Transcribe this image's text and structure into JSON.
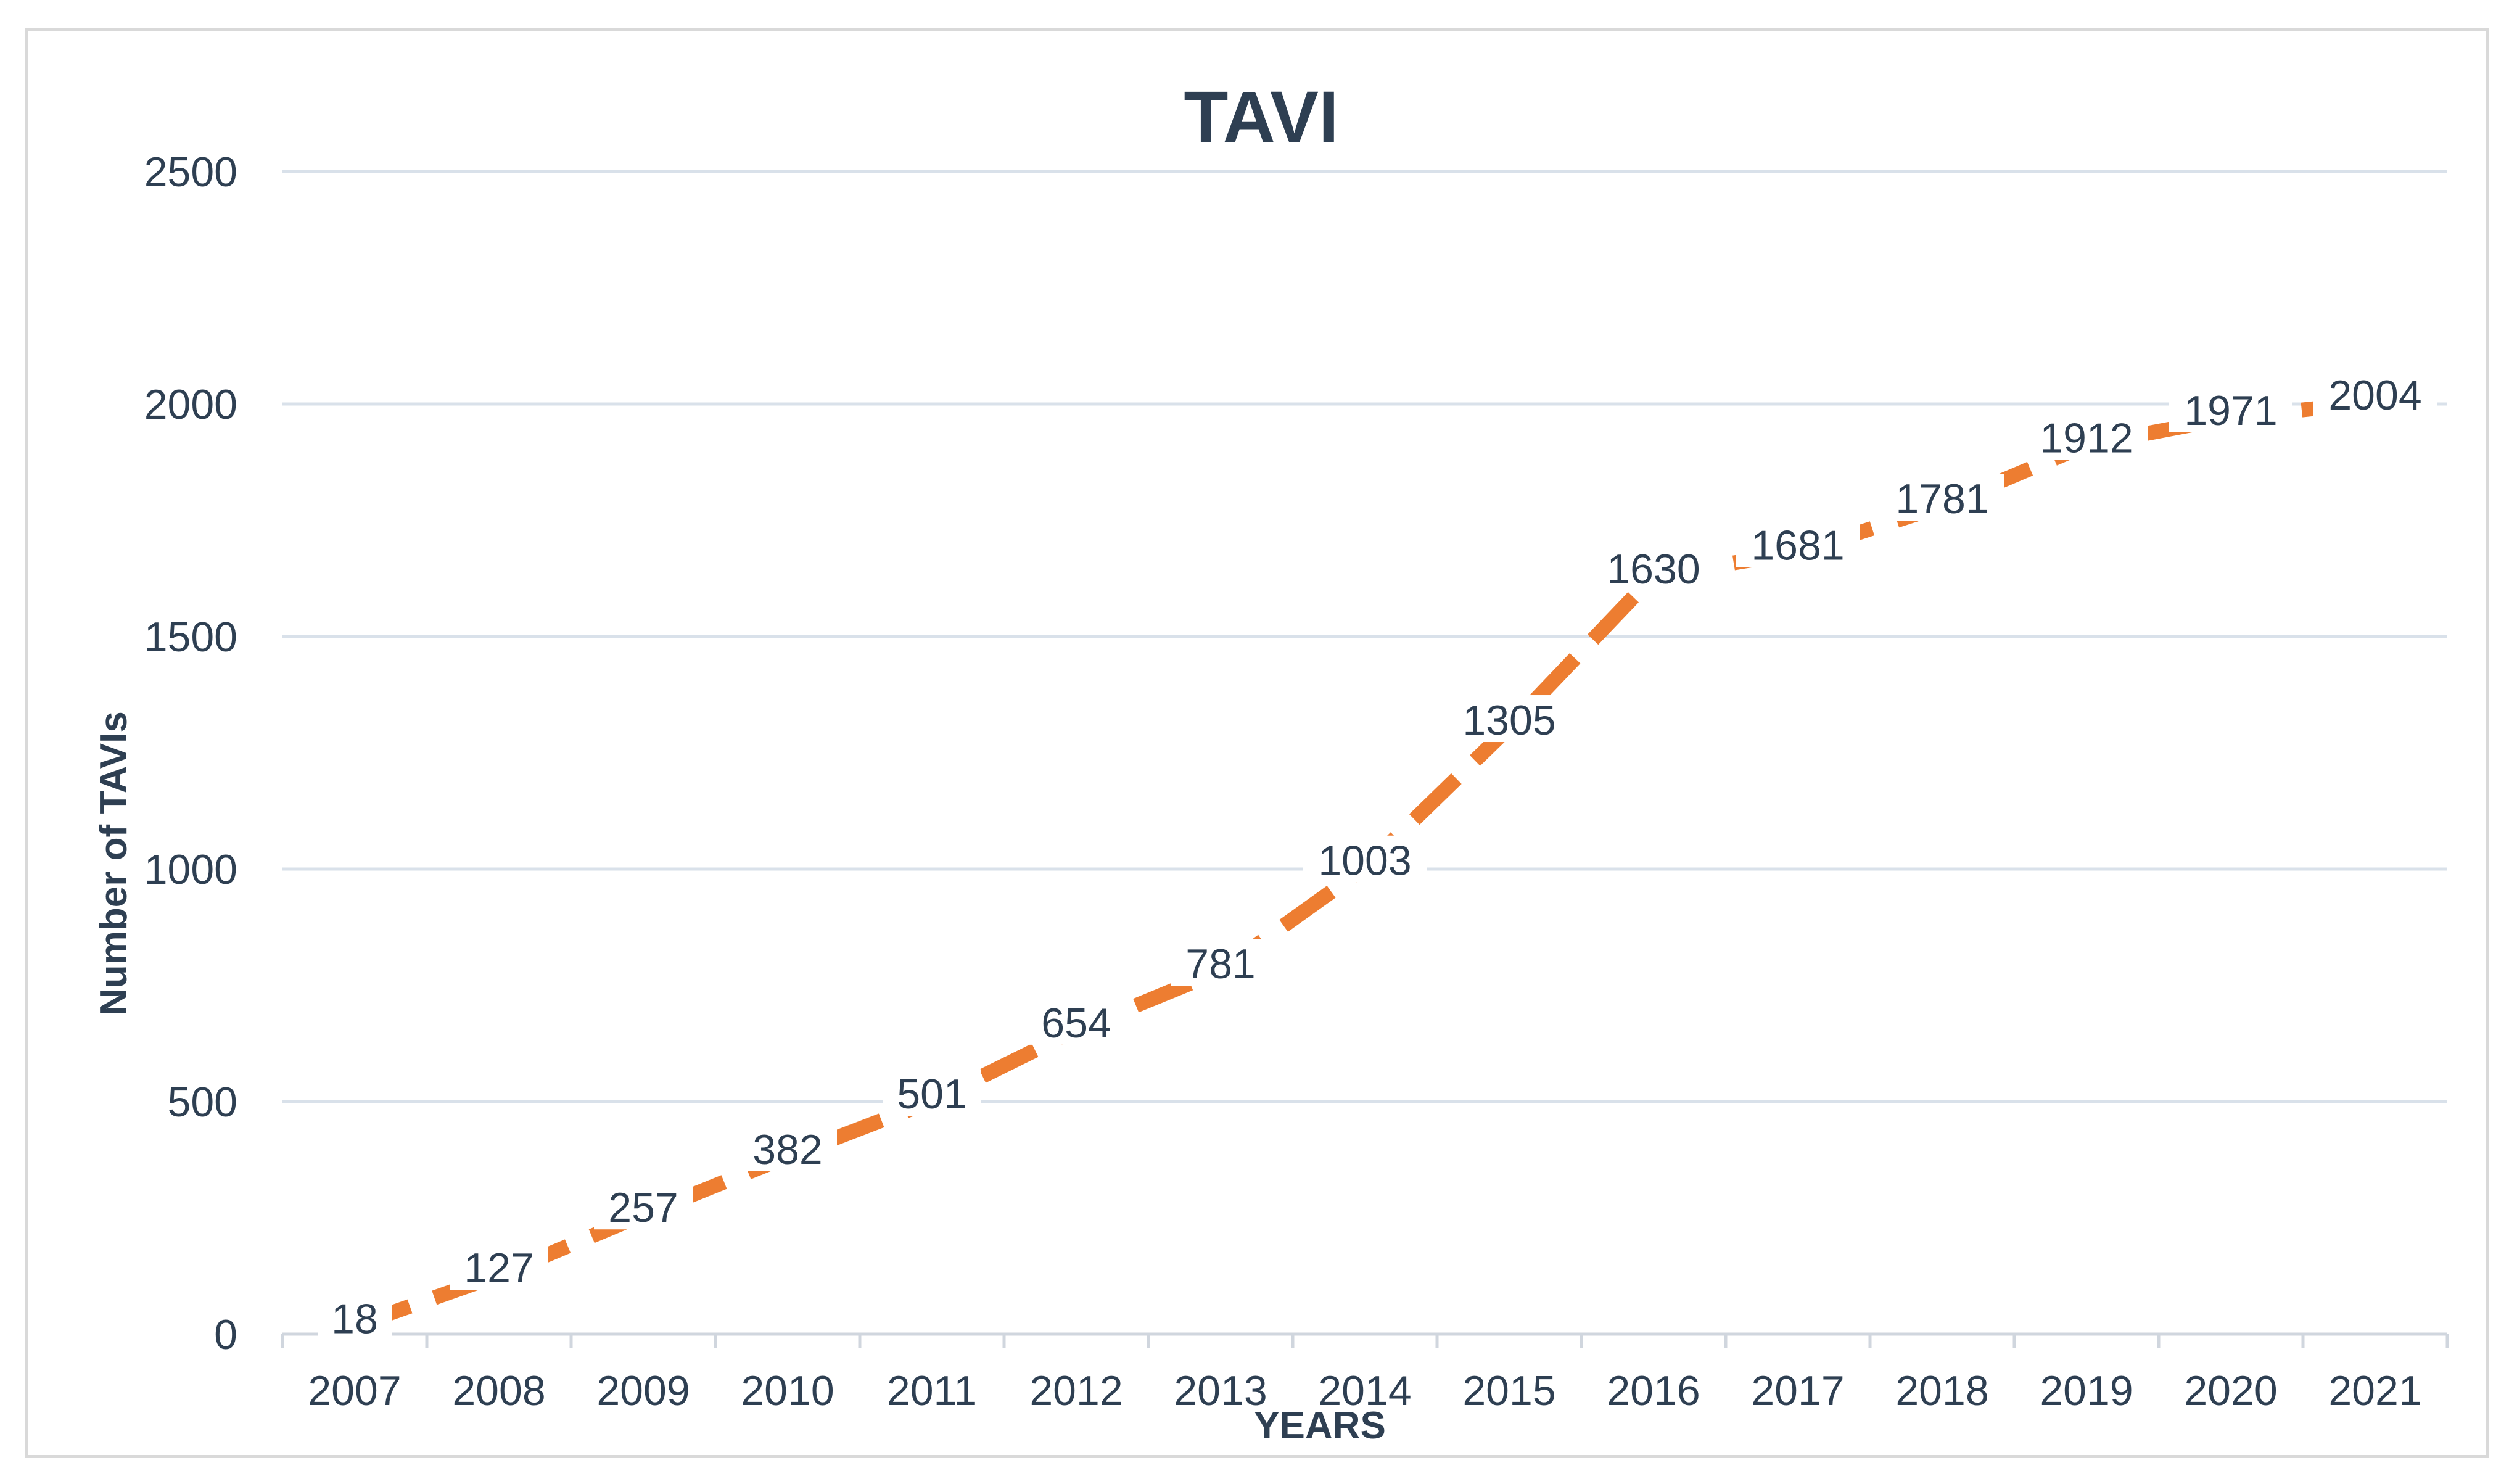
{
  "chart_data": {
    "type": "line",
    "title": "TAVI",
    "xlabel": "YEARS",
    "ylabel": "Number of TAVIs",
    "categories": [
      "2007",
      "2008",
      "2009",
      "2010",
      "2011",
      "2012",
      "2013",
      "2014",
      "2015",
      "2016",
      "2017",
      "2018",
      "2019",
      "2020",
      "2021"
    ],
    "series": [
      {
        "values": [
          18,
          127,
          257,
          382,
          501,
          654,
          781,
          1003,
          1305,
          1630,
          1681,
          1781,
          1912,
          1971,
          2004
        ],
        "color": "#ed7d31",
        "line_style": "dashed"
      }
    ],
    "ylim": [
      0,
      2500
    ],
    "yticks": [
      "0",
      "500",
      "1000",
      "1500",
      "2000",
      "2500"
    ],
    "grid": true,
    "legend": "none",
    "data_labels": true
  }
}
